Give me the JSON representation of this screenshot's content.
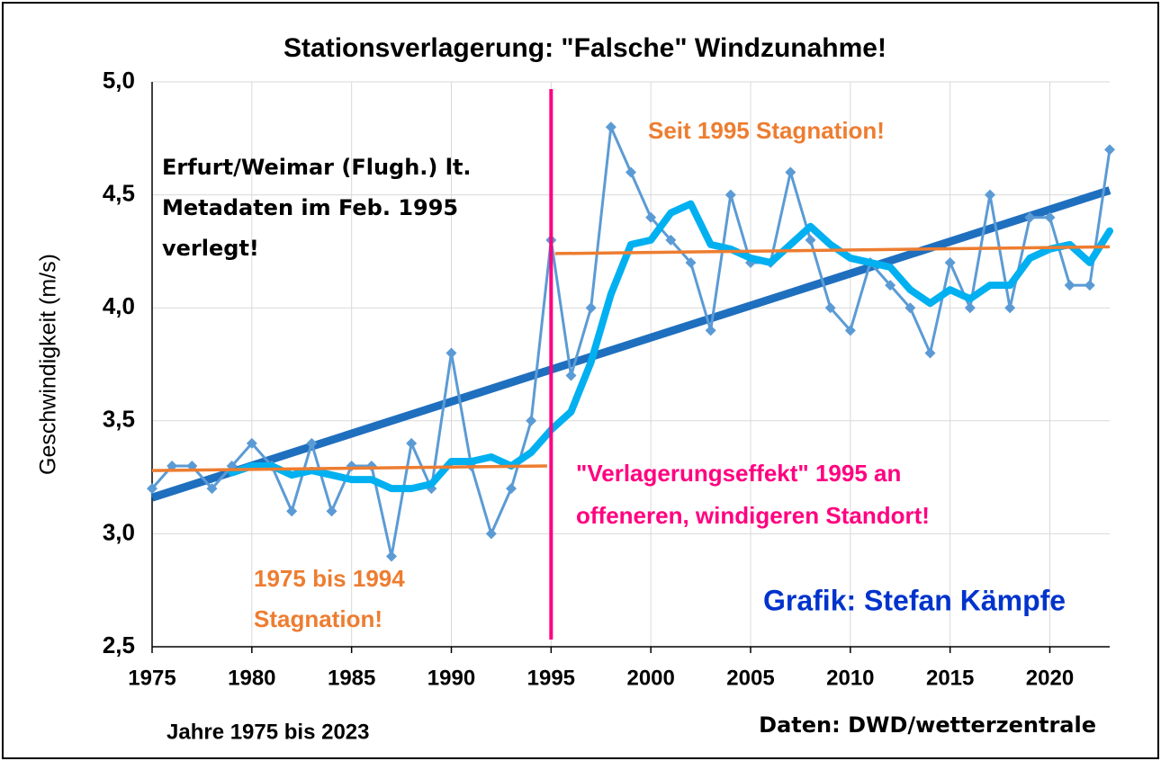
{
  "chart_data": {
    "type": "line",
    "title": "Stationsverlagerung: \"Falsche\" Windzunahme!",
    "y_label": "Geschwindigkeit (m/s)",
    "x_label": "Jahre 1975 bis 2023",
    "source": "Daten: DWD/wetterzentrale",
    "x": [
      1975,
      1976,
      1977,
      1978,
      1979,
      1980,
      1981,
      1982,
      1983,
      1984,
      1985,
      1986,
      1987,
      1988,
      1989,
      1990,
      1991,
      1992,
      1993,
      1994,
      1995,
      1996,
      1997,
      1998,
      1999,
      2000,
      2001,
      2002,
      2003,
      2004,
      2005,
      2006,
      2007,
      2008,
      2009,
      2010,
      2011,
      2012,
      2013,
      2014,
      2015,
      2016,
      2017,
      2018,
      2019,
      2020,
      2021,
      2022,
      2023
    ],
    "series": [
      {
        "color": "#5b9bd5",
        "markers": true,
        "values": [
          3.2,
          3.3,
          3.3,
          3.2,
          3.3,
          3.4,
          3.3,
          3.1,
          3.4,
          3.1,
          3.3,
          3.3,
          2.9,
          3.4,
          3.2,
          3.8,
          3.3,
          3.0,
          3.2,
          3.5,
          4.3,
          3.7,
          4.0,
          4.8,
          4.6,
          4.4,
          4.3,
          4.2,
          3.9,
          4.5,
          4.2,
          4.2,
          4.6,
          4.3,
          4.0,
          3.9,
          4.2,
          4.1,
          4.0,
          3.8,
          4.2,
          4.0,
          4.5,
          4.0,
          4.4,
          4.4,
          4.1,
          4.1,
          4.7
        ]
      },
      {
        "color": "#00b0f0",
        "markers": false,
        "values": [
          null,
          null,
          null,
          null,
          3.27,
          3.3,
          3.3,
          3.26,
          3.28,
          3.26,
          3.24,
          3.24,
          3.2,
          3.2,
          3.22,
          3.32,
          3.32,
          3.34,
          3.3,
          3.36,
          3.46,
          3.54,
          3.76,
          4.06,
          4.28,
          4.3,
          4.42,
          4.46,
          4.28,
          4.26,
          4.22,
          4.2,
          4.28,
          4.36,
          4.28,
          4.22,
          4.2,
          4.18,
          4.08,
          4.02,
          4.08,
          4.04,
          4.1,
          4.1,
          4.22,
          4.26,
          4.28,
          4.2,
          4.34
        ]
      }
    ],
    "trend_lines": [
      {
        "color": "#1f6fbf",
        "x": [
          1975,
          2023
        ],
        "y": [
          3.16,
          4.52
        ]
      },
      {
        "color": "#ed7d31",
        "x": [
          1975,
          1994.8
        ],
        "y": [
          3.28,
          3.3
        ]
      },
      {
        "color": "#ed7d31",
        "x": [
          1995.2,
          2023
        ],
        "y": [
          4.24,
          4.27
        ]
      }
    ],
    "vline": {
      "x": 1995,
      "color": "#ff0080"
    },
    "xlim": [
      1975,
      2023
    ],
    "xticks": [
      1975,
      1980,
      1985,
      1990,
      1995,
      2000,
      2005,
      2010,
      2015,
      2020
    ],
    "ylim": [
      2.5,
      5.0
    ],
    "yticks": [
      {
        "value": 2.5,
        "label": "2,5"
      },
      {
        "value": 3.0,
        "label": "3,0"
      },
      {
        "value": 3.5,
        "label": "3,5"
      },
      {
        "value": 4.0,
        "label": "4,0"
      },
      {
        "value": 4.5,
        "label": "4,5"
      },
      {
        "value": 5.0,
        "label": "5,0"
      }
    ],
    "grid": true,
    "annotations": [
      {
        "color": "#000000",
        "lines": [
          "Erfurt/Weimar (Flugh.) lt.",
          "Metadaten im Feb. 1995",
          "verlegt!"
        ]
      },
      {
        "color": "#ed7d31",
        "lines": [
          "Seit 1995 Stagnation!"
        ]
      },
      {
        "color": "#ed7d31",
        "lines": [
          "1975 bis 1994",
          "Stagnation!"
        ]
      },
      {
        "color": "#ff0080",
        "lines": [
          "\"Verlagerungseffekt\" 1995 an",
          "offeneren, windigeren Standort!"
        ]
      },
      {
        "color": "#0033cc",
        "lines": [
          "Grafik: Stefan Kämpfe"
        ]
      }
    ]
  }
}
